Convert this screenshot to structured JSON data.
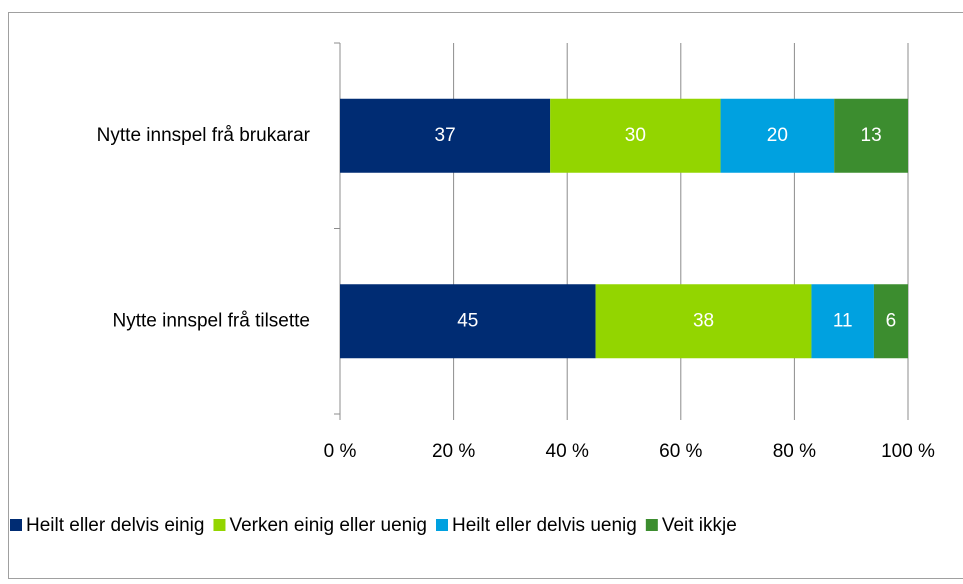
{
  "chart_data": {
    "type": "stacked_bar_horizontal",
    "categories": [
      "Nytte innspel frå brukarar",
      "Nytte innspel frå tilsette"
    ],
    "series": [
      {
        "name": "Heilt eller delvis einig",
        "color": "#002c73",
        "values": [
          37,
          45
        ]
      },
      {
        "name": "Verken einig eller uenig",
        "color": "#93d500",
        "values": [
          30,
          38
        ]
      },
      {
        "name": "Heilt eller delvis uenig",
        "color": "#00a1e0",
        "values": [
          20,
          11
        ]
      },
      {
        "name": "Veit ikkje",
        "color": "#3c8d2f",
        "values": [
          13,
          6
        ]
      }
    ],
    "xlim": [
      0,
      100
    ],
    "xticks": [
      {
        "value": 0,
        "label": "0 %"
      },
      {
        "value": 20,
        "label": "20 %"
      },
      {
        "value": 40,
        "label": "40 %"
      },
      {
        "value": 60,
        "label": "60 %"
      },
      {
        "value": 80,
        "label": "80 %"
      },
      {
        "value": 100,
        "label": "100 %"
      }
    ],
    "grid": true,
    "legend": "bottom"
  }
}
